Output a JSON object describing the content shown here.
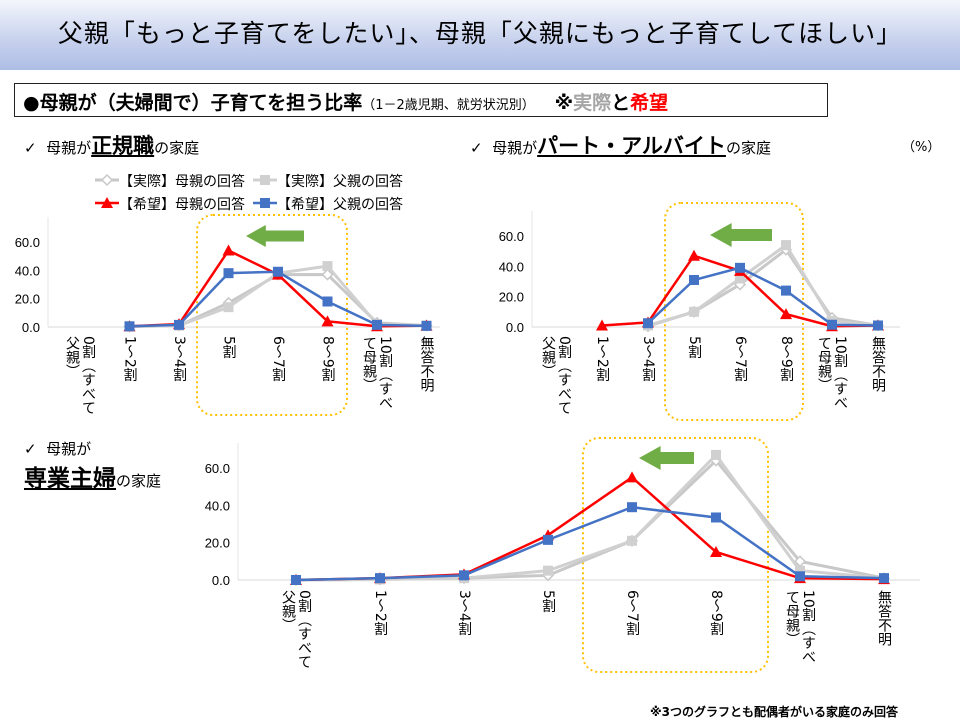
{
  "header": {
    "title": "父親「もっと子育てをしたい」、母親「父親にもっと子育てしてほしい」"
  },
  "subtitle": {
    "prefix": "●母親が（夫婦間で）子育てを担う比率",
    "small": "（1－2歳児期、就労状況別）",
    "note_mark": "※",
    "actual": "実際",
    "and": "と",
    "hope": "希望"
  },
  "sections": {
    "s1": {
      "check": "✓",
      "pre": "母親が",
      "big": "正規職",
      "post": "の家庭"
    },
    "s2": {
      "check": "✓",
      "pre": "母親が",
      "big": "パート・アルバイト",
      "post": "の家庭"
    },
    "s3": {
      "check": "✓",
      "pre": "母親が",
      "big": "専業主婦",
      "post": "の家庭"
    }
  },
  "unit": "（%）",
  "footnote": "※3つのグラフとも配偶者がいる家庭のみ回答",
  "colors": {
    "actual_mother": "#c8c8c8",
    "actual_father": "#d0d0d0",
    "hope_mother": "#ff0000",
    "hope_father": "#4472c4",
    "highlight": "#ffc000",
    "arrow": "#70ad47"
  },
  "chart_data": [
    {
      "type": "line",
      "title": "母親が正規職の家庭",
      "ylim": [
        0,
        60
      ],
      "yticks": [
        "0.0",
        "20.0",
        "40.0",
        "60.0"
      ],
      "categories": [
        "0割（すべて父親）",
        "1～2割",
        "3～4割",
        "5割",
        "6～7割",
        "8～9割",
        "10割（すべて母親）",
        "無答不明"
      ],
      "series": [
        {
          "name": "【実際】母親の回答",
          "values": [
            null,
            0.3,
            1,
            17,
            37,
            37,
            3,
            1
          ]
        },
        {
          "name": "【実際】父親の回答",
          "values": [
            null,
            0.3,
            1,
            14,
            38,
            43,
            2,
            1
          ]
        },
        {
          "name": "【希望】母親の回答",
          "values": [
            null,
            0.5,
            2,
            54,
            37,
            4,
            0.5,
            1
          ]
        },
        {
          "name": "【希望】父親の回答",
          "values": [
            null,
            0.5,
            1.5,
            38,
            39,
            18,
            1.5,
            0.8
          ]
        }
      ]
    },
    {
      "type": "line",
      "title": "母親がパート・アルバイトの家庭",
      "ylim": [
        0,
        60
      ],
      "yticks": [
        "0.0",
        "20.0",
        "40.0",
        "60.0"
      ],
      "categories": [
        "0割（すべて父親）",
        "1～2割",
        "3～4割",
        "5割",
        "6～7割",
        "8～9割",
        "10割（すべて母親）",
        "無答不明"
      ],
      "series": [
        {
          "name": "【実際】母親の回答",
          "values": [
            null,
            null,
            0.5,
            10,
            28,
            51,
            6,
            1
          ]
        },
        {
          "name": "【実際】父親の回答",
          "values": [
            null,
            null,
            1,
            10,
            32,
            54,
            4,
            1
          ]
        },
        {
          "name": "【希望】母親の回答",
          "values": [
            null,
            1,
            3,
            47,
            37,
            8.5,
            0.5,
            1
          ]
        },
        {
          "name": "【希望】父親の回答",
          "values": [
            null,
            null,
            2.5,
            31,
            39,
            24,
            1.5,
            1
          ]
        }
      ]
    },
    {
      "type": "line",
      "title": "母親が専業主婦の家庭",
      "ylim": [
        0,
        60
      ],
      "yticks": [
        "0.0",
        "20.0",
        "40.0",
        "60.0"
      ],
      "categories": [
        "0割（すべて父親）",
        "1～2割",
        "3～4割",
        "5割",
        "6～7割",
        "8～9割",
        "10割（すべて母親）",
        "無答不明"
      ],
      "series": [
        {
          "name": "【実際】母親の回答",
          "values": [
            0,
            0.3,
            1,
            2.5,
            21,
            64,
            10,
            1
          ]
        },
        {
          "name": "【実際】父親の回答",
          "values": [
            0,
            0.3,
            1,
            5,
            21,
            67,
            5,
            1
          ]
        },
        {
          "name": "【希望】母親の回答",
          "values": [
            0,
            1,
            3,
            24,
            55,
            15,
            1,
            0.5
          ]
        },
        {
          "name": "【希望】父親の回答",
          "values": [
            0,
            1,
            2.5,
            21.5,
            39,
            33.5,
            2,
            1
          ]
        }
      ]
    }
  ],
  "legend": [
    "【実際】母親の回答",
    "【実際】父親の回答",
    "【希望】母親の回答",
    "【希望】父親の回答"
  ]
}
